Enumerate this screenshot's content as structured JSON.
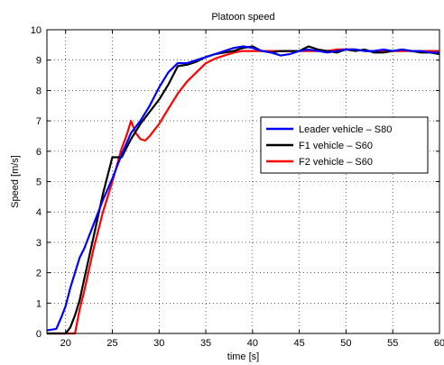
{
  "chart_data": {
    "type": "line",
    "title": "Platoon speed",
    "xlabel": "time [s]",
    "ylabel": "Speed [m/s]",
    "xlim": [
      18,
      60
    ],
    "ylim": [
      0,
      10
    ],
    "xticks": [
      20,
      25,
      30,
      35,
      40,
      45,
      50,
      55,
      60
    ],
    "yticks": [
      0,
      1,
      2,
      3,
      4,
      5,
      6,
      7,
      8,
      9,
      10
    ],
    "grid": true,
    "legend_position": "center-right",
    "series": [
      {
        "name": "Leader vehicle – S80",
        "color": "#0000ff",
        "x": [
          18,
          19,
          19.5,
          20,
          20.5,
          21,
          21.5,
          22,
          23,
          24,
          25,
          26,
          27,
          28,
          29,
          30,
          31,
          32,
          33,
          34,
          35,
          36,
          37,
          38,
          39,
          40,
          41,
          42,
          43,
          44,
          45,
          46,
          47,
          48,
          49,
          50,
          51,
          52,
          53,
          54,
          55,
          56,
          57,
          58,
          59,
          60
        ],
        "y": [
          0.1,
          0.15,
          0.5,
          0.9,
          1.5,
          2.0,
          2.5,
          2.8,
          3.6,
          4.4,
          5.1,
          5.9,
          6.6,
          7.0,
          7.5,
          8.1,
          8.6,
          8.9,
          8.9,
          9.0,
          9.1,
          9.2,
          9.3,
          9.4,
          9.45,
          9.4,
          9.3,
          9.25,
          9.15,
          9.2,
          9.3,
          9.35,
          9.3,
          9.25,
          9.3,
          9.35,
          9.35,
          9.3,
          9.3,
          9.35,
          9.3,
          9.35,
          9.3,
          9.3,
          9.25,
          9.25
        ]
      },
      {
        "name": "F1 vehicle – S60",
        "color": "#000000",
        "x": [
          18,
          20,
          20.5,
          21,
          21.5,
          22,
          23,
          24,
          25,
          25.5,
          26,
          26.5,
          27,
          28,
          29,
          30,
          31,
          32,
          33,
          34,
          35,
          36,
          37,
          38,
          39,
          40,
          41,
          42,
          43,
          44,
          45,
          46,
          47,
          48,
          49,
          50,
          51,
          52,
          53,
          54,
          55,
          56,
          57,
          58,
          59,
          60
        ],
        "y": [
          0.0,
          0.0,
          0.2,
          0.6,
          1.1,
          1.8,
          3.2,
          4.6,
          5.8,
          5.8,
          5.8,
          6.1,
          6.4,
          6.9,
          7.3,
          7.7,
          8.2,
          8.8,
          8.85,
          8.95,
          9.1,
          9.2,
          9.25,
          9.3,
          9.4,
          9.45,
          9.3,
          9.25,
          9.3,
          9.3,
          9.3,
          9.45,
          9.35,
          9.3,
          9.25,
          9.35,
          9.3,
          9.35,
          9.25,
          9.25,
          9.3,
          9.35,
          9.3,
          9.25,
          9.25,
          9.2
        ]
      },
      {
        "name": "F2 vehicle – S60",
        "color": "#ff0000",
        "x": [
          18,
          20,
          20.5,
          21,
          21.5,
          22,
          23,
          24,
          25,
          26,
          26.5,
          27,
          27.5,
          28,
          28.5,
          29,
          30,
          31,
          32,
          33,
          34,
          35,
          36,
          37,
          38,
          39,
          40,
          41,
          42,
          43,
          44,
          45,
          46,
          47,
          48,
          49,
          50,
          51,
          52,
          53,
          54,
          55,
          56,
          57,
          58,
          59,
          60
        ],
        "y": [
          0.0,
          0.0,
          0.0,
          0.0,
          0.8,
          1.4,
          2.8,
          4.0,
          5.0,
          6.1,
          6.5,
          7.0,
          6.6,
          6.4,
          6.35,
          6.5,
          6.9,
          7.4,
          7.9,
          8.3,
          8.6,
          8.9,
          9.05,
          9.15,
          9.25,
          9.3,
          9.3,
          9.3,
          9.3,
          9.3,
          9.3,
          9.3,
          9.3,
          9.3,
          9.3,
          9.35,
          9.35,
          9.35,
          9.3,
          9.3,
          9.3,
          9.3,
          9.3,
          9.3,
          9.3,
          9.3,
          9.3
        ]
      }
    ]
  }
}
